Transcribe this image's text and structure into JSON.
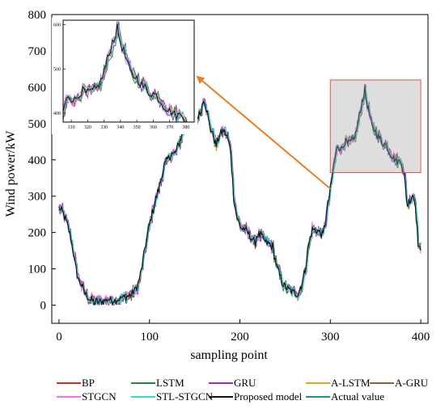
{
  "chart_data": {
    "type": "line",
    "title": "",
    "xlabel": "sampling point",
    "ylabel": "Wind power/kW",
    "xlim": [
      -8,
      408
    ],
    "ylim": [
      -50,
      800
    ],
    "xticks": [
      0,
      100,
      200,
      300,
      400
    ],
    "yticks": [
      0,
      100,
      200,
      300,
      400,
      500,
      600,
      700,
      800
    ],
    "grid": false,
    "legend_position": "bottom",
    "actual_keypoints": [
      [
        0,
        268
      ],
      [
        4,
        255
      ],
      [
        8,
        230
      ],
      [
        12,
        195
      ],
      [
        15,
        160
      ],
      [
        18,
        110
      ],
      [
        21,
        75
      ],
      [
        24,
        60
      ],
      [
        27,
        40
      ],
      [
        30,
        30
      ],
      [
        33,
        18
      ],
      [
        36,
        12
      ],
      [
        40,
        8
      ],
      [
        45,
        10
      ],
      [
        50,
        12
      ],
      [
        55,
        15
      ],
      [
        60,
        14
      ],
      [
        65,
        16
      ],
      [
        70,
        20
      ],
      [
        75,
        25
      ],
      [
        80,
        30
      ],
      [
        84,
        40
      ],
      [
        88,
        60
      ],
      [
        92,
        110
      ],
      [
        96,
        170
      ],
      [
        100,
        220
      ],
      [
        104,
        265
      ],
      [
        108,
        300
      ],
      [
        112,
        340
      ],
      [
        116,
        380
      ],
      [
        120,
        400
      ],
      [
        124,
        415
      ],
      [
        128,
        418
      ],
      [
        132,
        440
      ],
      [
        136,
        470
      ],
      [
        140,
        495
      ],
      [
        144,
        520
      ],
      [
        148,
        520
      ],
      [
        152,
        510
      ],
      [
        156,
        530
      ],
      [
        160,
        570
      ],
      [
        163,
        540
      ],
      [
        166,
        500
      ],
      [
        170,
        470
      ],
      [
        174,
        440
      ],
      [
        178,
        470
      ],
      [
        182,
        480
      ],
      [
        186,
        465
      ],
      [
        190,
        420
      ],
      [
        193,
        300
      ],
      [
        196,
        250
      ],
      [
        200,
        215
      ],
      [
        204,
        210
      ],
      [
        208,
        200
      ],
      [
        212,
        190
      ],
      [
        216,
        170
      ],
      [
        220,
        195
      ],
      [
        224,
        190
      ],
      [
        228,
        175
      ],
      [
        232,
        170
      ],
      [
        236,
        160
      ],
      [
        240,
        115
      ],
      [
        244,
        80
      ],
      [
        248,
        55
      ],
      [
        252,
        45
      ],
      [
        256,
        40
      ],
      [
        260,
        35
      ],
      [
        264,
        30
      ],
      [
        268,
        55
      ],
      [
        272,
        95
      ],
      [
        276,
        165
      ],
      [
        280,
        210
      ],
      [
        284,
        205
      ],
      [
        288,
        200
      ],
      [
        292,
        195
      ],
      [
        296,
        255
      ],
      [
        300,
        320
      ],
      [
        304,
        390
      ],
      [
        308,
        440
      ],
      [
        312,
        430
      ],
      [
        316,
        450
      ],
      [
        320,
        445
      ],
      [
        324,
        450
      ],
      [
        328,
        470
      ],
      [
        332,
        520
      ],
      [
        335,
        560
      ],
      [
        338,
        590
      ],
      [
        342,
        540
      ],
      [
        346,
        490
      ],
      [
        350,
        480
      ],
      [
        354,
        460
      ],
      [
        358,
        445
      ],
      [
        362,
        440
      ],
      [
        366,
        420
      ],
      [
        370,
        405
      ],
      [
        374,
        395
      ],
      [
        378,
        400
      ],
      [
        382,
        350
      ],
      [
        385,
        275
      ],
      [
        388,
        290
      ],
      [
        391,
        305
      ],
      [
        394,
        280
      ],
      [
        397,
        170
      ],
      [
        400,
        145
      ]
    ],
    "series": [
      {
        "name": "BP",
        "color": "#e8262a"
      },
      {
        "name": "LSTM",
        "color": "#218a3a"
      },
      {
        "name": "GRU",
        "color": "#8b2fd9"
      },
      {
        "name": "A-LSTM",
        "color": "#e0a81c"
      },
      {
        "name": "A-GRU",
        "color": "#8a6240"
      },
      {
        "name": "STGCN",
        "color": "#ef6de8"
      },
      {
        "name": "STL-STGCN",
        "color": "#33d6d6"
      },
      {
        "name": "Proposed model",
        "color": "#111111"
      },
      {
        "name": "Actual value",
        "color": "#1f8f8a"
      }
    ],
    "inset": {
      "xlim": [
        305,
        385
      ],
      "ylim": [
        380,
        610
      ],
      "xticks": [
        310,
        320,
        330,
        340,
        350,
        360,
        370,
        380
      ],
      "yticks": [
        400,
        500,
        600
      ],
      "source_box": {
        "x": [
          300,
          400
        ],
        "y": [
          365,
          620
        ]
      }
    }
  }
}
